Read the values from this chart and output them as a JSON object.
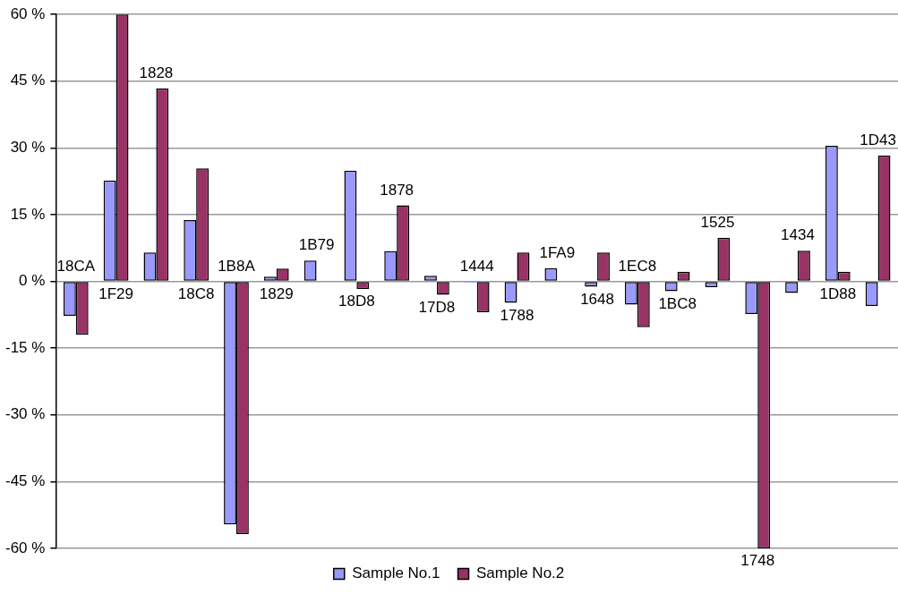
{
  "chart_data": {
    "type": "bar",
    "categories": [
      "18CA",
      "1F29",
      "1828",
      "18C8",
      "1B8A",
      "1829",
      "1B79",
      "18D8",
      "1878",
      "17D8",
      "1444",
      "1788",
      "1FA9",
      "1648",
      "1EC8",
      "1BC8",
      "1525",
      "1748",
      "1434",
      "1D88",
      "1D43"
    ],
    "series": [
      {
        "name": "Sample No.1",
        "color": "#9999ff",
        "values": [
          -7.7,
          22.7,
          6.5,
          13.8,
          -54.6,
          1.1,
          4.7,
          24.9,
          6.8,
          1.3,
          -0.3,
          -4.8,
          3.0,
          -1.2,
          -5.2,
          -2.2,
          -1.3,
          -7.3,
          -2.6,
          30.5,
          -5.5
        ]
      },
      {
        "name": "Sample No.2",
        "color": "#993366",
        "values": [
          -12.0,
          60,
          43.4,
          25.4,
          -56.8,
          2.9,
          0,
          -1.7,
          17.1,
          -3.0,
          -6.9,
          6.5,
          0,
          6.5,
          -10.3,
          2.2,
          9.8,
          -60,
          6.9,
          2.2,
          28.3
        ]
      }
    ],
    "ylim": [
      -60,
      60
    ],
    "yticks": [
      {
        "value": -60,
        "label": "-60 %"
      },
      {
        "value": -45,
        "label": "-45 %"
      },
      {
        "value": -30,
        "label": "-30 %"
      },
      {
        "value": -15,
        "label": "-15 %"
      },
      {
        "value": 0,
        "label": "0 %"
      },
      {
        "value": 15,
        "label": "15 %"
      },
      {
        "value": 30,
        "label": "30 %"
      },
      {
        "value": 45,
        "label": "45 %"
      },
      {
        "value": 60,
        "label": "60 %"
      }
    ],
    "grid": "y",
    "legend": "bottom"
  }
}
